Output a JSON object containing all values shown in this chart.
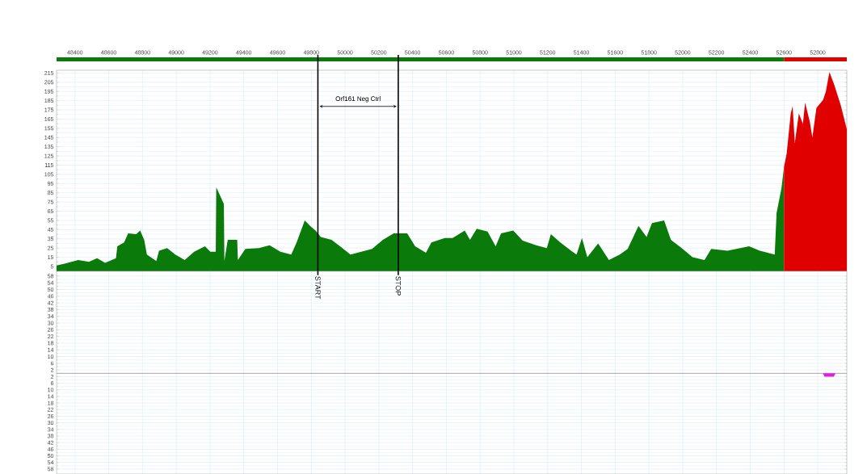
{
  "chart_data": [
    {
      "type": "area",
      "xlim": [
        48291,
        52972
      ],
      "ylim": [
        0,
        218
      ],
      "xticks": [
        48400,
        48600,
        48800,
        49000,
        49200,
        49400,
        49600,
        49800,
        50000,
        50200,
        50400,
        50600,
        50800,
        51000,
        51200,
        51400,
        51600,
        51800,
        52000,
        52200,
        52400,
        52600,
        52800
      ],
      "yticks": [
        5,
        15,
        25,
        35,
        45,
        55,
        65,
        75,
        85,
        95,
        105,
        115,
        125,
        135,
        145,
        155,
        165,
        175,
        185,
        195,
        205,
        215
      ],
      "grid": true,
      "series": [
        {
          "color": "#0a7a0a",
          "x": [
            48291,
            48339,
            48419,
            48483,
            48531,
            48579,
            48643,
            48651,
            48691,
            48715,
            48763,
            48786,
            48810,
            48826,
            48882,
            48898,
            48946,
            48994,
            49050,
            49106,
            49170,
            49202,
            49234,
            49237,
            49282,
            49285,
            49305,
            49361,
            49365,
            49409,
            49489,
            49553,
            49617,
            49681,
            49713,
            49761,
            49793,
            49825,
            49856,
            49920,
            49984,
            50032,
            50096,
            50160,
            50224,
            50288,
            50368,
            50415,
            50479,
            50511,
            50591,
            50637,
            50709,
            50740,
            50780,
            50844,
            50892,
            50924,
            50996,
            51052,
            51132,
            51195,
            51219,
            51275,
            51339,
            51371,
            51403,
            51435,
            51499,
            51563,
            51627,
            51674,
            51738,
            51786,
            51818,
            51890,
            51930,
            51994,
            52058,
            52129,
            52169,
            52265,
            52393,
            52457,
            52545,
            52556,
            52585,
            52600
          ],
          "values": [
            6,
            8,
            12,
            10,
            14,
            9,
            14,
            27,
            31,
            41,
            40,
            44,
            34,
            18,
            11,
            22,
            25,
            18,
            12,
            21,
            27,
            21,
            21,
            91,
            73,
            11,
            34,
            34,
            12,
            24,
            25,
            28,
            21,
            18,
            31,
            55,
            49,
            44,
            37,
            34,
            25,
            18,
            21,
            24,
            34,
            41,
            41,
            27,
            20,
            31,
            36,
            36,
            44,
            34,
            46,
            43,
            27,
            41,
            44,
            33,
            28,
            25,
            40,
            31,
            22,
            18,
            36,
            15,
            30,
            12,
            18,
            24,
            49,
            37,
            52,
            55,
            34,
            25,
            15,
            12,
            24,
            22,
            27,
            22,
            18,
            63,
            90,
            113
          ]
        },
        {
          "color": "#e00000",
          "x": [
            52600,
            52616,
            52640,
            52651,
            52664,
            52688,
            52712,
            52725,
            52753,
            52768,
            52792,
            52832,
            52848,
            52869,
            52896,
            52936,
            52972
          ],
          "values": [
            113,
            128,
            171,
            179,
            139,
            171,
            160,
            183,
            162,
            145,
            177,
            186,
            195,
            216,
            203,
            180,
            154
          ]
        }
      ],
      "ref_lines": [
        {
          "axis": "x",
          "value": 49839,
          "label": "START",
          "color": "#000000"
        },
        {
          "axis": "x",
          "value": 50315,
          "label": "STOP",
          "color": "#000000"
        }
      ],
      "annotations": [
        "Orf161 Neg Ctrl"
      ]
    },
    {
      "type": "area",
      "xlim": [
        48291,
        52972
      ],
      "ylim": [
        0,
        61
      ],
      "yticks": [
        2,
        6,
        10,
        14,
        18,
        22,
        26,
        30,
        34,
        38,
        42,
        46,
        50,
        54,
        58
      ],
      "tick_labels": "y",
      "grid": true
    },
    {
      "type": "area",
      "xlim": [
        48291,
        52972
      ],
      "ylim": [
        61,
        0
      ],
      "yticks": [
        2,
        6,
        10,
        14,
        18,
        22,
        26,
        30,
        34,
        38,
        42,
        46,
        50,
        54,
        58
      ],
      "tick_labels": "y",
      "grid": true,
      "series": [
        {
          "color": "#e020e0",
          "x": [
            52830,
            52840,
            52870,
            52895,
            52905
          ],
          "values": [
            0,
            2,
            2,
            2,
            0
          ]
        }
      ]
    }
  ]
}
